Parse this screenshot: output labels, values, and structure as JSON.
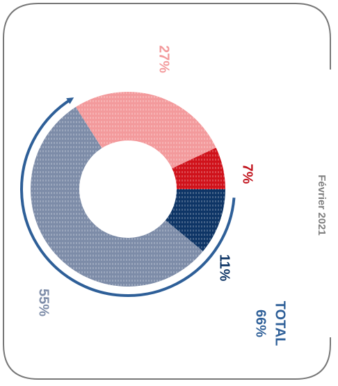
{
  "chart_data": {
    "type": "pie",
    "subtitle": "Février 2021",
    "categories": [
      null,
      null,
      null,
      null
    ],
    "values": [
      11,
      55,
      27,
      7
    ],
    "value_labels": [
      "11%",
      "55%",
      "27%",
      "7%"
    ],
    "colors": [
      "#0e3566",
      "#7d8ca8",
      "#f39a9c",
      "#d0121b"
    ],
    "label_colors": [
      "#0e3566",
      "#7d8ca8",
      "#f39a9c",
      "#c0101a"
    ],
    "total_label": "TOTAL",
    "total_value_label": "66%"
  }
}
